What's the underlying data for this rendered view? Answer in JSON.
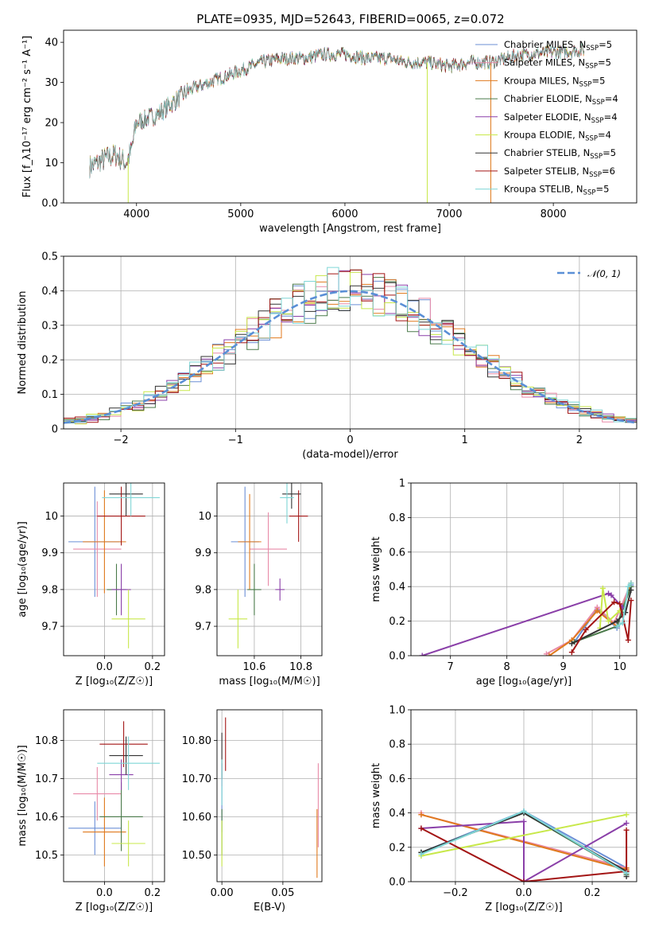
{
  "figure": {
    "title": "PLATE=0935, MJD=52643, FIBERID=0065, z=0.072"
  },
  "series_colors": [
    "#6b8fd6",
    "#e88aa8",
    "#e07a1e",
    "#4a7a4a",
    "#8a3fa8",
    "#c8e84a",
    "#333333",
    "#a31515",
    "#7fd6d6"
  ],
  "chart_data": [
    {
      "id": "spectrum",
      "type": "line",
      "xlabel": "wavelength [Angstrom, rest frame]",
      "ylabel": "Flux [f_λ10⁻¹⁷ erg cm⁻² s⁻¹ A⁻¹]",
      "xlim": [
        3300,
        8800
      ],
      "ylim": [
        0,
        43
      ],
      "xticks": [
        4000,
        5000,
        6000,
        7000,
        8000
      ],
      "yticks": [
        0,
        10,
        20,
        30,
        40
      ],
      "grid": false,
      "legend_position": "top-right",
      "legend": [
        {
          "label": "Chabrier MILES, N",
          "sub": "SSP",
          "tail": "=5"
        },
        {
          "label": "Salpeter MILES, N",
          "sub": "SSP",
          "tail": "=5"
        },
        {
          "label": "Kroupa MILES, N",
          "sub": "SSP",
          "tail": "=5"
        },
        {
          "label": "Chabrier ELODIE, N",
          "sub": "SSP",
          "tail": "=4"
        },
        {
          "label": "Salpeter ELODIE, N",
          "sub": "SSP",
          "tail": "=4"
        },
        {
          "label": "Kroupa ELODIE, N",
          "sub": "SSP",
          "tail": "=4"
        },
        {
          "label": "Chabrier STELIB, N",
          "sub": "SSP",
          "tail": "=5"
        },
        {
          "label": "Salpeter STELIB, N",
          "sub": "SSP",
          "tail": "=6"
        },
        {
          "label": "Kroupa STELIB, N",
          "sub": "SSP",
          "tail": "=5"
        }
      ],
      "continuum": [
        [
          3550,
          9
        ],
        [
          3700,
          11
        ],
        [
          3800,
          12
        ],
        [
          3900,
          10
        ],
        [
          3950,
          13
        ],
        [
          4000,
          20
        ],
        [
          4100,
          21
        ],
        [
          4200,
          22
        ],
        [
          4300,
          24
        ],
        [
          4400,
          26
        ],
        [
          4500,
          28
        ],
        [
          4700,
          30
        ],
        [
          4900,
          32
        ],
        [
          5000,
          33
        ],
        [
          5200,
          35
        ],
        [
          5400,
          36
        ],
        [
          5600,
          36
        ],
        [
          5800,
          37
        ],
        [
          6000,
          37
        ],
        [
          6200,
          36
        ],
        [
          6400,
          36
        ],
        [
          6600,
          35
        ],
        [
          6800,
          35
        ],
        [
          7000,
          34
        ],
        [
          7200,
          35
        ],
        [
          7400,
          35
        ],
        [
          7700,
          37
        ],
        [
          8000,
          37.5
        ],
        [
          8300,
          38
        ]
      ],
      "spikes": [
        [
          3920,
          0
        ],
        [
          6790,
          0
        ],
        [
          7400,
          0
        ]
      ]
    },
    {
      "id": "residual-hist",
      "type": "area",
      "xlabel": "(data-model)/error",
      "ylabel": "Normed distribution",
      "xlim": [
        -2.5,
        2.5
      ],
      "ylim": [
        0,
        0.5
      ],
      "xticks": [
        -2,
        -1,
        0,
        1,
        2
      ],
      "yticks": [
        0.0,
        0.1,
        0.2,
        0.3,
        0.4,
        0.5
      ],
      "grid": true,
      "legend_position": "top-right",
      "legend": [
        "𝒩(0, 1)"
      ],
      "bin_width": 0.1,
      "bins_start": -2.5,
      "curve_color": "#5a8fd6"
    },
    {
      "id": "age-vs-metallicity",
      "type": "scatter",
      "xlabel": "Z [log₁₀(Z/Z☉)]",
      "ylabel": "age  [log₁₀(age/yr)]",
      "xlim": [
        -0.17,
        0.25
      ],
      "ylim": [
        9.62,
        10.09
      ],
      "xticks": [
        0.0,
        0.2
      ],
      "yticks": [
        9.7,
        9.8,
        9.9,
        10.0
      ],
      "grid": true,
      "points": [
        {
          "x": -0.04,
          "y": 9.93,
          "xerr": 0.11,
          "yerr": 0.15
        },
        {
          "x": -0.03,
          "y": 9.91,
          "xerr": 0.1,
          "yerr": 0.13
        },
        {
          "x": 0.0,
          "y": 9.93,
          "xerr": 0.09,
          "yerr": 0.14
        },
        {
          "x": 0.05,
          "y": 9.8,
          "xerr": 0.04,
          "yerr": 0.07
        },
        {
          "x": 0.07,
          "y": 9.8,
          "xerr": 0.04,
          "yerr": 0.07
        },
        {
          "x": 0.1,
          "y": 9.72,
          "xerr": 0.07,
          "yerr": 0.08
        },
        {
          "x": 0.09,
          "y": 10.06,
          "xerr": 0.07,
          "yerr": 0.06
        },
        {
          "x": 0.07,
          "y": 10.0,
          "xerr": 0.1,
          "yerr": 0.08
        },
        {
          "x": 0.11,
          "y": 10.05,
          "xerr": 0.12,
          "yerr": 0.05
        }
      ]
    },
    {
      "id": "age-vs-mass",
      "type": "scatter",
      "xlabel": "mass [log₁₀(M/M☉)]",
      "ylabel": "",
      "xlim": [
        10.44,
        10.89
      ],
      "ylim": [
        9.62,
        10.09
      ],
      "xticks": [
        10.6,
        10.8
      ],
      "yticks": [
        9.7,
        9.8,
        9.9,
        10.0
      ],
      "grid": true,
      "points": [
        {
          "x": 10.56,
          "y": 9.93,
          "xerr": 0.06,
          "yerr": 0.15
        },
        {
          "x": 10.66,
          "y": 9.91,
          "xerr": 0.08,
          "yerr": 0.1
        },
        {
          "x": 10.58,
          "y": 9.93,
          "xerr": 0.05,
          "yerr": 0.13
        },
        {
          "x": 10.6,
          "y": 9.8,
          "xerr": 0.03,
          "yerr": 0.07
        },
        {
          "x": 10.71,
          "y": 9.8,
          "xerr": 0.02,
          "yerr": 0.03
        },
        {
          "x": 10.53,
          "y": 9.72,
          "xerr": 0.04,
          "yerr": 0.08
        },
        {
          "x": 10.76,
          "y": 10.06,
          "xerr": 0.04,
          "yerr": 0.04
        },
        {
          "x": 10.79,
          "y": 10.0,
          "xerr": 0.04,
          "yerr": 0.07
        },
        {
          "x": 10.74,
          "y": 10.05,
          "xerr": 0.03,
          "yerr": 0.07
        }
      ]
    },
    {
      "id": "weight-vs-age",
      "type": "line",
      "xlabel": "age  [log₁₀(age/yr)]",
      "ylabel": "mass weight",
      "xlim": [
        6.3,
        10.3
      ],
      "ylim": [
        0,
        1.0
      ],
      "xticks": [
        7,
        8,
        9,
        10
      ],
      "yticks": [
        0.0,
        0.2,
        0.4,
        0.6,
        0.8,
        1.0
      ],
      "grid": true,
      "series": [
        {
          "x": [
            9.2,
            9.6,
            9.95,
            10.05,
            10.2
          ],
          "y": [
            0.08,
            0.27,
            0.16,
            0.28,
            0.41
          ]
        },
        {
          "x": [
            8.7,
            9.15,
            9.6,
            9.9,
            10.2
          ],
          "y": [
            0.01,
            0.09,
            0.28,
            0.19,
            0.42
          ]
        },
        {
          "x": [
            8.75,
            9.15,
            9.6,
            9.95,
            10.2
          ],
          "y": [
            0.0,
            0.09,
            0.26,
            0.17,
            0.42
          ]
        },
        {
          "x": [
            9.2,
            9.95,
            10.05,
            10.2
          ],
          "y": [
            0.08,
            0.17,
            0.27,
            0.4
          ]
        },
        {
          "x": [
            6.5,
            9.8,
            9.85,
            10.05
          ],
          "y": [
            0.0,
            0.36,
            0.35,
            0.28
          ]
        },
        {
          "x": [
            9.65,
            9.7,
            9.8,
            10.0
          ],
          "y": [
            0.16,
            0.39,
            0.2,
            0.26
          ]
        },
        {
          "x": [
            9.15,
            9.95,
            10.1,
            10.2
          ],
          "y": [
            0.07,
            0.2,
            0.25,
            0.38
          ]
        },
        {
          "x": [
            9.15,
            9.4,
            9.9,
            10.0,
            10.15,
            10.2
          ],
          "y": [
            0.02,
            0.15,
            0.31,
            0.3,
            0.09,
            0.32
          ]
        },
        {
          "x": [
            9.95,
            10.05,
            10.15,
            10.2
          ],
          "y": [
            0.17,
            0.19,
            0.4,
            0.42
          ]
        }
      ]
    },
    {
      "id": "mass-vs-metallicity",
      "type": "scatter",
      "xlabel": "Z [log₁₀(Z/Z☉)]",
      "ylabel": "mass [log₁₀(M/M☉)]",
      "xlim": [
        -0.17,
        0.25
      ],
      "ylim": [
        10.43,
        10.88
      ],
      "xticks": [
        0.0,
        0.2
      ],
      "yticks": [
        10.5,
        10.6,
        10.7,
        10.8
      ],
      "grid": true,
      "points": [
        {
          "x": -0.04,
          "y": 10.57,
          "xerr": 0.11,
          "yerr": 0.07
        },
        {
          "x": -0.03,
          "y": 10.66,
          "xerr": 0.1,
          "yerr": 0.07
        },
        {
          "x": 0.0,
          "y": 10.56,
          "xerr": 0.09,
          "yerr": 0.09
        },
        {
          "x": 0.07,
          "y": 10.6,
          "xerr": 0.09,
          "yerr": 0.09
        },
        {
          "x": 0.07,
          "y": 10.71,
          "xerr": 0.05,
          "yerr": 0.04
        },
        {
          "x": 0.1,
          "y": 10.53,
          "xerr": 0.07,
          "yerr": 0.06
        },
        {
          "x": 0.09,
          "y": 10.76,
          "xerr": 0.07,
          "yerr": 0.05
        },
        {
          "x": 0.08,
          "y": 10.79,
          "xerr": 0.1,
          "yerr": 0.06
        },
        {
          "x": 0.1,
          "y": 10.74,
          "xerr": 0.13,
          "yerr": 0.07
        }
      ]
    },
    {
      "id": "mass-vs-extinction",
      "type": "scatter",
      "xlabel": "E(B-V)",
      "ylabel": "",
      "xlim": [
        -0.004,
        0.082
      ],
      "ylim": [
        10.43,
        10.88
      ],
      "xticks": [
        0.0,
        0.05
      ],
      "yticks": [
        10.5,
        10.6,
        10.7,
        10.8
      ],
      "grid": true,
      "points": [
        {
          "x": 0.0,
          "y": 10.62,
          "xerr": 0.0,
          "yerr": 0.06
        },
        {
          "x": 0.079,
          "y": 10.63,
          "xerr": 0.0,
          "yerr": 0.11
        },
        {
          "x": 0.078,
          "y": 10.53,
          "xerr": 0.0,
          "yerr": 0.09
        },
        {
          "x": 0.0,
          "y": 10.56,
          "xerr": 0.0,
          "yerr": 0.06
        },
        {
          "x": 0.0,
          "y": 10.71,
          "xerr": 0.0,
          "yerr": 0.03
        },
        {
          "x": 0.0,
          "y": 10.53,
          "xerr": 0.0,
          "yerr": 0.06
        },
        {
          "x": 0.0,
          "y": 10.76,
          "xerr": 0.0,
          "yerr": 0.06
        },
        {
          "x": 0.003,
          "y": 10.79,
          "xerr": 0.0,
          "yerr": 0.07
        },
        {
          "x": 0.0,
          "y": 10.69,
          "xerr": 0.0,
          "yerr": 0.06
        }
      ]
    },
    {
      "id": "weight-vs-metallicity",
      "type": "line",
      "xlabel": "Z [log₁₀(Z/Z☉)]",
      "ylabel": "mass weight",
      "xlim": [
        -0.33,
        0.33
      ],
      "ylim": [
        0,
        1.0
      ],
      "xticks": [
        -0.2,
        0.0,
        0.2
      ],
      "yticks": [
        0.0,
        0.2,
        0.4,
        0.6,
        0.8,
        1.0
      ],
      "grid": true,
      "series": [
        {
          "x": [
            -0.3,
            0.0,
            0.3,
            0.3
          ],
          "y": [
            0.17,
            0.41,
            0.08,
            0.05
          ]
        },
        {
          "x": [
            -0.3,
            -0.3,
            0.3,
            0.3
          ],
          "y": [
            0.4,
            0.39,
            0.08,
            0.06
          ]
        },
        {
          "x": [
            -0.3,
            0.3,
            0.3
          ],
          "y": [
            0.39,
            0.07,
            0.08
          ]
        },
        {
          "x": [
            -0.3,
            0.0,
            0.3,
            0.3
          ],
          "y": [
            0.17,
            0.4,
            0.05,
            0.04
          ]
        },
        {
          "x": [
            -0.3,
            0.0,
            0.0,
            0.3
          ],
          "y": [
            0.31,
            0.35,
            0.0,
            0.34
          ]
        },
        {
          "x": [
            -0.3,
            0.3
          ],
          "y": [
            0.15,
            0.39
          ]
        },
        {
          "x": [
            -0.3,
            0.0,
            0.3,
            0.3
          ],
          "y": [
            0.17,
            0.4,
            0.06,
            0.03
          ]
        },
        {
          "x": [
            -0.3,
            0.0,
            0.3,
            0.3
          ],
          "y": [
            0.31,
            0.0,
            0.06,
            0.3
          ]
        },
        {
          "x": [
            -0.3,
            0.0,
            0.3
          ],
          "y": [
            0.16,
            0.41,
            0.05
          ]
        }
      ]
    }
  ]
}
